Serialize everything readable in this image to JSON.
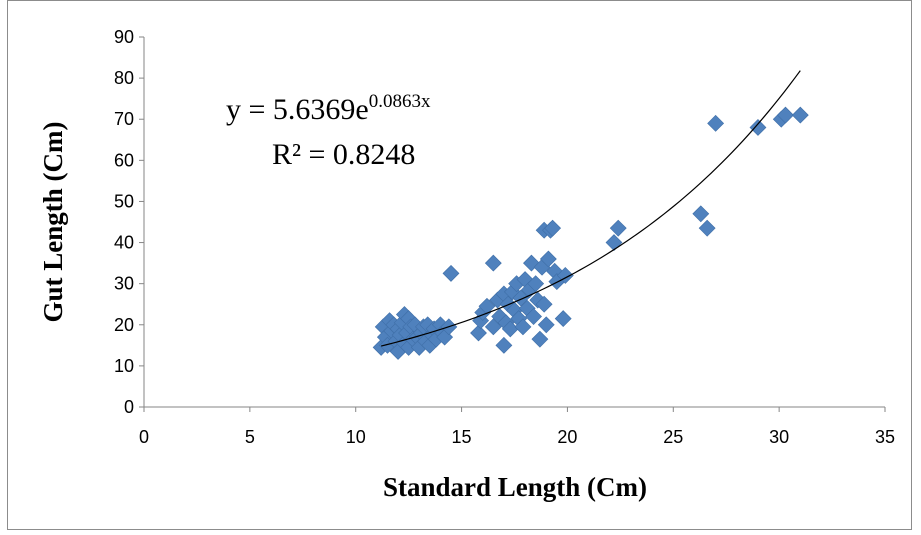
{
  "chart_data": {
    "type": "scatter",
    "title": "",
    "xlabel": "Standard Length (Cm)",
    "ylabel": "Gut Length (Cm)",
    "xlim": [
      0,
      35
    ],
    "ylim": [
      0,
      90
    ],
    "xticks": [
      "0",
      "5",
      "10",
      "15",
      "20",
      "25",
      "30",
      "35"
    ],
    "yticks": [
      "0",
      "10",
      "20",
      "30",
      "40",
      "50",
      "60",
      "70",
      "80",
      "90"
    ],
    "grid": false,
    "legend": "none",
    "marker_color": "#4f81bd",
    "trendline": {
      "type": "exponential",
      "a": 5.6369,
      "b": 0.0863,
      "x_range": [
        11.2,
        31.0
      ],
      "color": "#000000",
      "equation_base": "y = 5.6369e",
      "equation_exponent": "0.0863x",
      "r_squared_label": "R² = 0.8248"
    },
    "points": [
      [
        11.2,
        14.5
      ],
      [
        11.3,
        19.5
      ],
      [
        11.4,
        17.0
      ],
      [
        11.5,
        15.0
      ],
      [
        11.6,
        21.0
      ],
      [
        11.7,
        18.5
      ],
      [
        11.8,
        20.0
      ],
      [
        11.9,
        16.0
      ],
      [
        12.0,
        19.0
      ],
      [
        12.0,
        13.5
      ],
      [
        12.1,
        17.5
      ],
      [
        12.2,
        20.5
      ],
      [
        12.3,
        15.5
      ],
      [
        12.3,
        22.5
      ],
      [
        12.4,
        18.0
      ],
      [
        12.5,
        14.5
      ],
      [
        12.5,
        21.5
      ],
      [
        12.6,
        19.5
      ],
      [
        12.7,
        16.5
      ],
      [
        12.8,
        20.0
      ],
      [
        12.9,
        17.0
      ],
      [
        13.0,
        14.5
      ],
      [
        13.1,
        18.0
      ],
      [
        13.2,
        19.5
      ],
      [
        13.3,
        16.0
      ],
      [
        13.4,
        20.0
      ],
      [
        13.5,
        15.0
      ],
      [
        13.6,
        17.5
      ],
      [
        13.7,
        19.0
      ],
      [
        13.8,
        16.5
      ],
      [
        14.0,
        20.0
      ],
      [
        14.1,
        18.0
      ],
      [
        14.2,
        17.0
      ],
      [
        14.4,
        19.5
      ],
      [
        14.5,
        32.5
      ],
      [
        15.8,
        18.0
      ],
      [
        15.9,
        21.0
      ],
      [
        16.0,
        23.0
      ],
      [
        16.2,
        24.5
      ],
      [
        16.5,
        35.0
      ],
      [
        16.5,
        19.5
      ],
      [
        16.7,
        26.0
      ],
      [
        16.8,
        22.0
      ],
      [
        17.0,
        15.0
      ],
      [
        17.0,
        27.5
      ],
      [
        17.1,
        20.5
      ],
      [
        17.2,
        25.0
      ],
      [
        17.3,
        19.0
      ],
      [
        17.4,
        28.0
      ],
      [
        17.5,
        23.5
      ],
      [
        17.6,
        30.0
      ],
      [
        17.7,
        21.5
      ],
      [
        17.8,
        26.5
      ],
      [
        17.9,
        19.5
      ],
      [
        18.0,
        31.0
      ],
      [
        18.1,
        24.0
      ],
      [
        18.2,
        28.5
      ],
      [
        18.3,
        35.0
      ],
      [
        18.4,
        22.0
      ],
      [
        18.5,
        30.0
      ],
      [
        18.6,
        26.0
      ],
      [
        18.7,
        16.5
      ],
      [
        18.8,
        34.0
      ],
      [
        18.9,
        43.0
      ],
      [
        18.9,
        25.0
      ],
      [
        19.0,
        20.0
      ],
      [
        19.1,
        36.0
      ],
      [
        19.2,
        43.0
      ],
      [
        19.3,
        43.5
      ],
      [
        19.4,
        33.0
      ],
      [
        19.5,
        30.5
      ],
      [
        19.8,
        21.5
      ],
      [
        19.9,
        32.0
      ],
      [
        22.2,
        40.0
      ],
      [
        22.4,
        43.5
      ],
      [
        26.3,
        47.0
      ],
      [
        26.6,
        43.5
      ],
      [
        27.0,
        69.0
      ],
      [
        29.0,
        68.0
      ],
      [
        30.1,
        70.0
      ],
      [
        30.3,
        71.0
      ],
      [
        31.0,
        71.0
      ]
    ]
  }
}
